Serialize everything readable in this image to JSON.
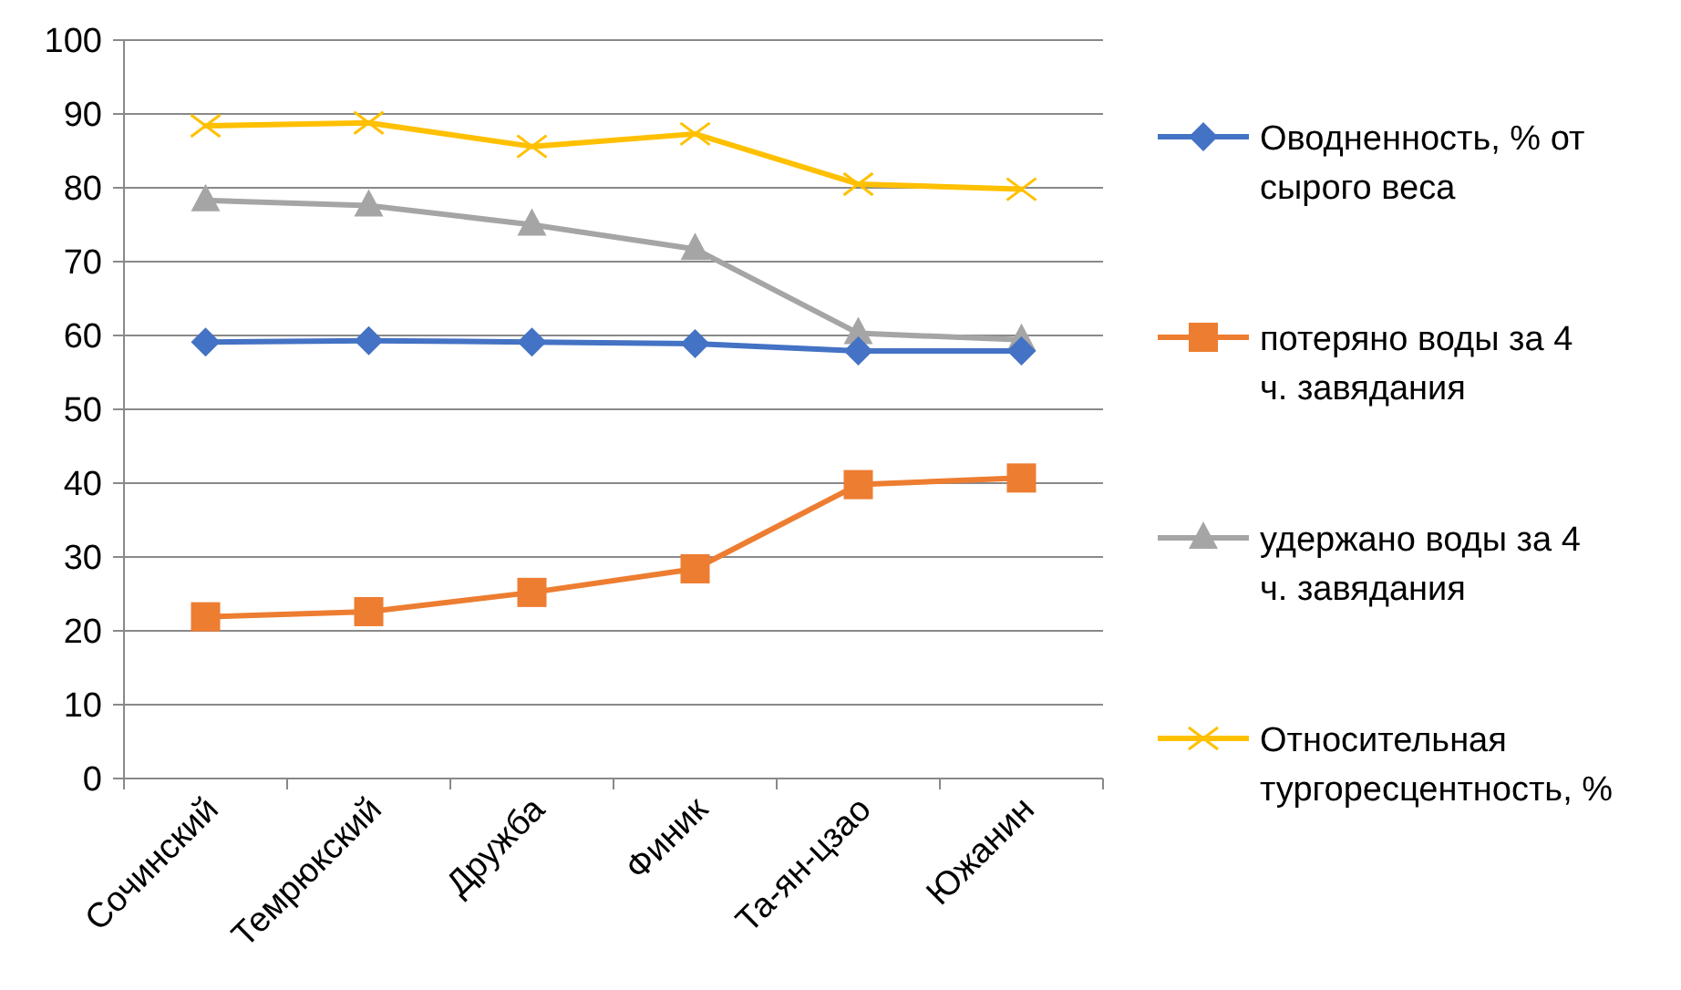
{
  "chart_data": {
    "type": "line",
    "categories": [
      "Сочинский",
      "Темрюкский",
      "Дружба",
      "Финик",
      "Та-ян-цзао",
      "Южанин"
    ],
    "ylim": [
      0,
      100
    ],
    "yticks": [
      0,
      10,
      20,
      30,
      40,
      50,
      60,
      70,
      80,
      90,
      100
    ],
    "grid": "y",
    "legend": "right",
    "series": [
      {
        "name": "Оводненность, % от сырого веса",
        "color": "#4472c4",
        "marker": "diamond",
        "values": [
          59.1,
          59.3,
          59.1,
          58.9,
          57.9,
          57.9
        ]
      },
      {
        "name": "потеряно воды за 4 ч. завядания",
        "color": "#ed7d31",
        "marker": "square",
        "values": [
          21.9,
          22.6,
          25.2,
          28.4,
          39.8,
          40.7
        ]
      },
      {
        "name": "удержано воды за 4 ч. завядания",
        "color": "#a5a5a5",
        "marker": "triangle",
        "values": [
          78.3,
          77.6,
          75.0,
          71.7,
          60.3,
          59.4
        ]
      },
      {
        "name": "Относительная тургоресцентность, %",
        "color": "#ffc000",
        "marker": "cross",
        "values": [
          88.4,
          88.8,
          85.6,
          87.3,
          80.5,
          79.8
        ]
      }
    ]
  }
}
